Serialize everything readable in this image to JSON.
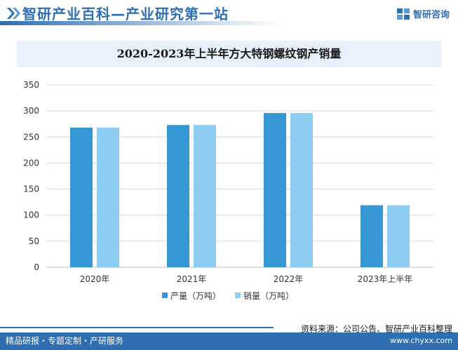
{
  "header": {
    "title": "智研产业百科—产业研究第一站",
    "brand_name": "智研咨询"
  },
  "colors": {
    "brand": "#2f6fb1",
    "series_production": "#3597d4",
    "series_sales": "#8ecdf2",
    "title_band": "#e8f0fb"
  },
  "chart_data": {
    "type": "bar",
    "title": "2020-2023年上半年方大特钢螺纹钢产销量",
    "categories": [
      "2020年",
      "2021年",
      "2022年",
      "2023年上半年"
    ],
    "series": [
      {
        "name": "产量（万吨）",
        "values": [
          268,
          273,
          296,
          119
        ]
      },
      {
        "name": "销量（万吨）",
        "values": [
          268,
          273,
          296,
          119
        ]
      }
    ],
    "xlabel": "",
    "ylabel": "",
    "ylim": [
      0,
      350
    ],
    "yticks": [
      0,
      50,
      100,
      150,
      200,
      250,
      300,
      350
    ],
    "grid": true,
    "legend_position": "bottom-center"
  },
  "footer": {
    "source": "资料来源：公司公告、智研产业百科整理",
    "left_text": "精品研报・专题定制・产研服务",
    "url": "www.chyxx.com"
  }
}
